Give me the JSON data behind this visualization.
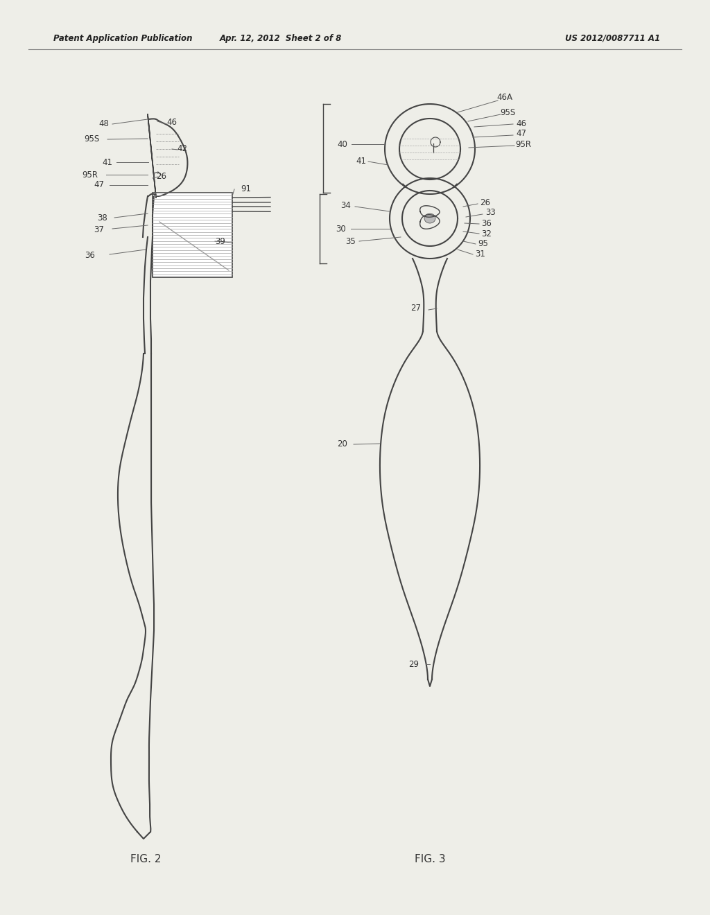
{
  "header_left": "Patent Application Publication",
  "header_mid": "Apr. 12, 2012  Sheet 2 of 8",
  "header_right": "US 2012/0087711 A1",
  "fig2_label": "FIG. 2",
  "fig3_label": "FIG. 3",
  "background_color": "#eeeee8",
  "line_color": "#444444",
  "header_color": "#222222",
  "label_color": "#333333"
}
